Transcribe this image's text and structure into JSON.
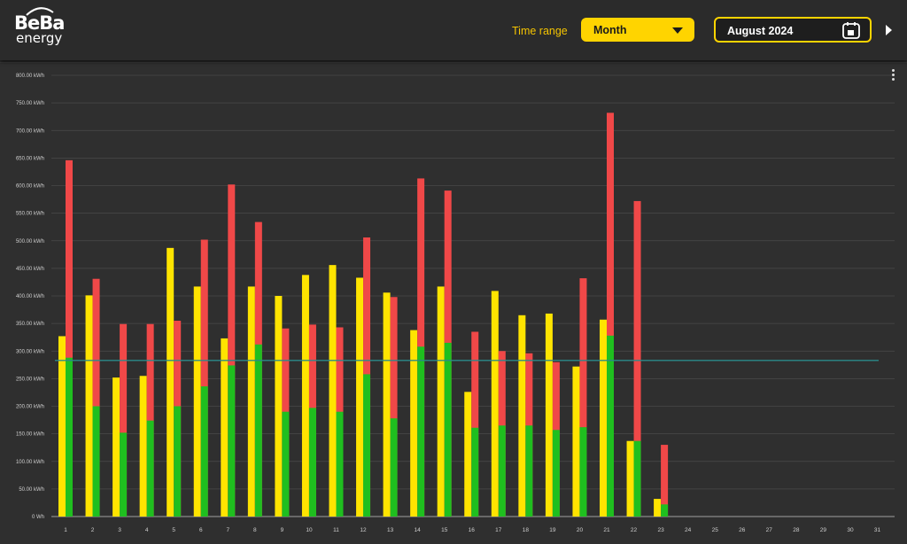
{
  "header": {
    "logo_top": "BeBa",
    "logo_bottom": "energy",
    "time_range_label": "Time range",
    "time_range_value": "Month",
    "date_value": "August 2024"
  },
  "icons": {
    "calendar": "calendar-icon",
    "caret": "chevron-down-icon",
    "next": "next-arrow-icon",
    "menu": "kebab-menu-icon"
  },
  "colors": {
    "yellow": "#ffe400",
    "green": "#1fbf1f",
    "red": "#f04848",
    "reference_line": "#2b8a8a",
    "accent": "#ffd400"
  },
  "chart_data": {
    "type": "bar",
    "unit": "kWh",
    "ylim": [
      0,
      800
    ],
    "y_ticks": [
      "0 Wh",
      "50.00 kWh",
      "100.00 kWh",
      "150.00 kWh",
      "200.00 kWh",
      "250.00 kWh",
      "300.00 kWh",
      "350.00 kWh",
      "400.00 kWh",
      "450.00 kWh",
      "500.00 kWh",
      "550.00 kWh",
      "600.00 kWh",
      "650.00 kWh",
      "700.00 kWh",
      "750.00 kWh",
      "800.00 kWh"
    ],
    "categories": [
      "1",
      "2",
      "3",
      "4",
      "5",
      "6",
      "7",
      "8",
      "9",
      "10",
      "11",
      "12",
      "13",
      "14",
      "15",
      "16",
      "17",
      "18",
      "19",
      "20",
      "21",
      "22",
      "23",
      "24",
      "25",
      "26",
      "27",
      "28",
      "29",
      "30",
      "31"
    ],
    "grid": true,
    "reference_line": 283,
    "yellow_bars": [
      327,
      401,
      252,
      255,
      487,
      417,
      323,
      417,
      400,
      438,
      456,
      433,
      406,
      338,
      417,
      226,
      409,
      365,
      368,
      272,
      357,
      137,
      32
    ],
    "red_bars_total": [
      646,
      431,
      349,
      349,
      355,
      502,
      602,
      534,
      341,
      348,
      343,
      506,
      398,
      613,
      591,
      335,
      300,
      296,
      280,
      432,
      732,
      572,
      130
    ],
    "green_bars": [
      288,
      200,
      152,
      174,
      200,
      236,
      274,
      312,
      190,
      197,
      190,
      258,
      178,
      308,
      315,
      161,
      165,
      165,
      157,
      162,
      328,
      137,
      22
    ]
  }
}
